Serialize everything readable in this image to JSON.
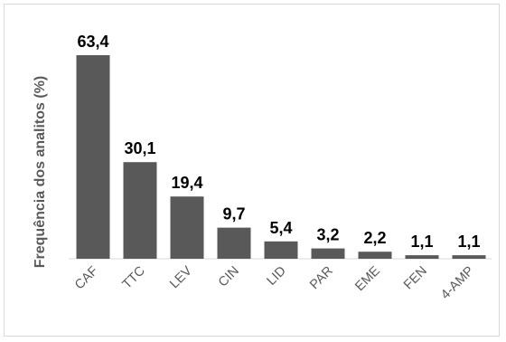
{
  "chart_data": {
    "type": "bar",
    "title": "",
    "xlabel": "",
    "ylabel": "Frequência dos analitos (%)",
    "categories": [
      "CAF",
      "TTC",
      "LEV",
      "CIN",
      "LID",
      "PAR",
      "EME",
      "FEN",
      "4-AMP"
    ],
    "values": [
      63.4,
      30.1,
      19.4,
      9.7,
      5.4,
      3.2,
      2.2,
      1.1,
      1.1
    ],
    "value_labels": [
      "63,4",
      "30,1",
      "19,4",
      "9,7",
      "5,4",
      "3,2",
      "2,2",
      "1,1",
      "1,1"
    ],
    "ylim": [
      0,
      65
    ],
    "grid": false,
    "legend": "none",
    "bar_color": "#595959"
  }
}
